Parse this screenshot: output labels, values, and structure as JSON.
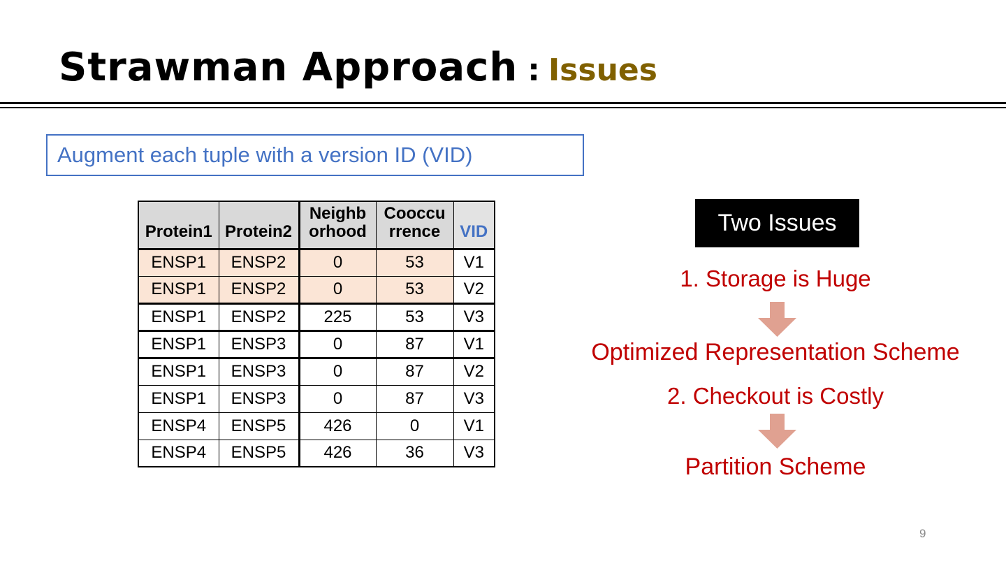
{
  "slide": {
    "title": {
      "main": "Strawman Approach",
      "separator": ":",
      "accent": "Issues"
    },
    "callout": "Augment each tuple with a version ID (VID)",
    "page_number": "9"
  },
  "table": {
    "headers": [
      {
        "lines": [
          "Protein1"
        ]
      },
      {
        "lines": [
          "Protein2"
        ]
      },
      {
        "lines": [
          "Neighb",
          "orhood"
        ]
      },
      {
        "lines": [
          "Cooccu",
          "rrence"
        ]
      },
      {
        "lines": [
          "VID"
        ]
      }
    ],
    "rows": [
      {
        "cells": [
          "ENSP1",
          "ENSP2",
          "0",
          "53",
          "V1"
        ],
        "highlighted": true
      },
      {
        "cells": [
          "ENSP1",
          "ENSP2",
          "0",
          "53",
          "V2"
        ],
        "highlighted": true
      },
      {
        "cells": [
          "ENSP1",
          "ENSP2",
          "225",
          "53",
          "V3"
        ],
        "highlighted": false
      },
      {
        "cells": [
          "ENSP1",
          "ENSP3",
          "0",
          "87",
          "V1"
        ],
        "highlighted": false
      },
      {
        "cells": [
          "ENSP1",
          "ENSP3",
          "0",
          "87",
          "V2"
        ],
        "highlighted": false
      },
      {
        "cells": [
          "ENSP1",
          "ENSP3",
          "0",
          "87",
          "V3"
        ],
        "highlighted": false
      },
      {
        "cells": [
          "ENSP4",
          "ENSP5",
          "426",
          "0",
          "V1"
        ],
        "highlighted": false
      },
      {
        "cells": [
          "ENSP4",
          "ENSP5",
          "426",
          "36",
          "V3"
        ],
        "highlighted": false
      }
    ]
  },
  "issues": {
    "box_label": "Two Issues",
    "items": [
      {
        "problem": "1. Storage is Huge",
        "solution": "Optimized Representation Scheme"
      },
      {
        "problem": "2. Checkout is Costly",
        "solution": "Partition Scheme"
      }
    ]
  },
  "colors": {
    "accent_title": "#806000",
    "blue": "#4472C4",
    "red": "#C00000",
    "arrow": "#E0A191",
    "header_bg": "#D9D9D9",
    "highlight_bg": "#FBE5D6"
  }
}
